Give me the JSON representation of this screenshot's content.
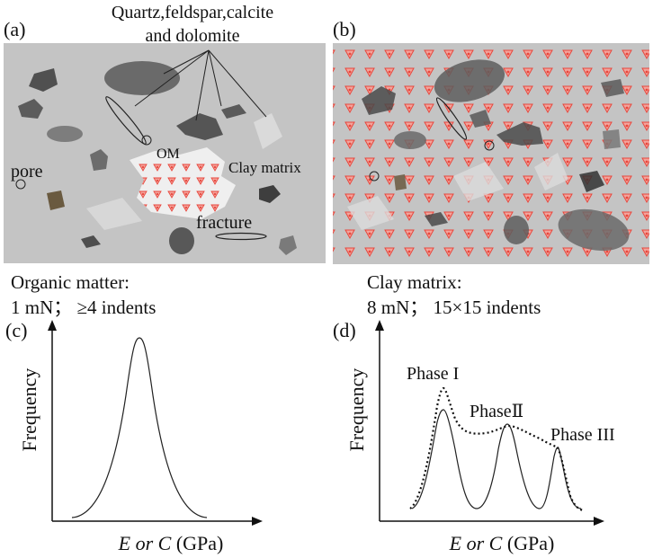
{
  "panels": {
    "a": {
      "letter": "(a)",
      "minerals_label_line1": "Quartz,feldspar,calcite",
      "minerals_label_line2": "and dolomite",
      "om_label": "OM",
      "pore_label": "pore",
      "clay_matrix_label": "Clay matrix",
      "fracture_label": "fracture",
      "caption_line1": "Organic matter:",
      "caption_line2": "1 mN； ≥4 indents"
    },
    "b": {
      "letter": "(b)",
      "caption_line1": "Clay matrix:",
      "caption_line2": "8 mN；  15×15 indents"
    },
    "c": {
      "letter": "(c)",
      "ylabel": "Frequency",
      "xlabel_italic": "E or C",
      "xlabel_unit": " (GPa)"
    },
    "d": {
      "letter": "(d)",
      "ylabel": "Frequency",
      "xlabel_italic": "E or C",
      "xlabel_unit": " (GPa)",
      "phase1": "Phase I",
      "phase2": "PhaseⅡ",
      "phase3": "Phase III"
    }
  },
  "colors": {
    "background_gray": "#c4c4c4",
    "mineral_dark": "#5a5a5a",
    "mineral_medium": "#7d7d7d",
    "mineral_light": "#dcdcdc",
    "indent_marker": "#e8463c"
  }
}
